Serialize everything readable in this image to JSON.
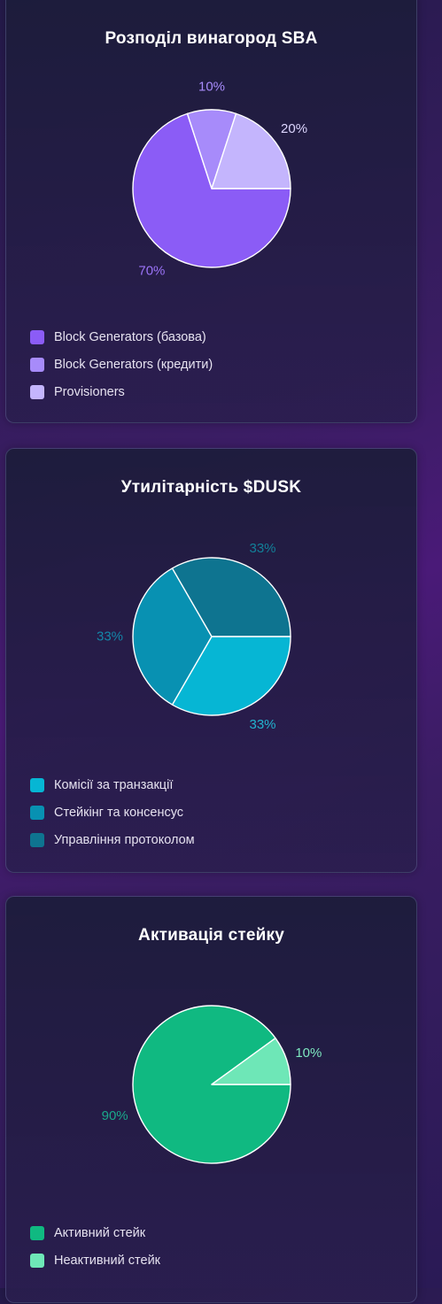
{
  "chart_data": [
    {
      "type": "pie",
      "title": "Розподіл винагород SBA",
      "categories": [
        "Block Generators (базова)",
        "Block Generators (кредити)",
        "Provisioners"
      ],
      "values": [
        70,
        10,
        20
      ],
      "labels": [
        "70%",
        "10%",
        "20%"
      ],
      "colors": [
        "#8b5cf6",
        "#a78bfa",
        "#c4b5fd"
      ],
      "label_colors": [
        "#9b73f7",
        "#a78bfa",
        "#ddd6fe"
      ],
      "legend": "bottom-left"
    },
    {
      "type": "pie",
      "title": "Утилітарність $DUSK",
      "categories": [
        "Комісії за транзакції",
        "Стейкінг та консенсус",
        "Управління протоколом"
      ],
      "values": [
        33,
        33,
        33
      ],
      "labels": [
        "33%",
        "33%",
        "33%"
      ],
      "colors": [
        "#06b6d4",
        "#0891b2",
        "#0e7490"
      ],
      "label_colors": [
        "#22b3cf",
        "#1486a8",
        "#128099"
      ],
      "legend": "bottom-left"
    },
    {
      "type": "pie",
      "title": "Активація стейку",
      "categories": [
        "Активний стейк",
        "Неактивний стейк"
      ],
      "values": [
        90,
        10
      ],
      "labels": [
        "90%",
        "10%"
      ],
      "colors": [
        "#10b981",
        "#6ee7b7"
      ],
      "label_colors": [
        "#1aa88a",
        "#7ee8c0"
      ],
      "legend": "bottom-left"
    }
  ]
}
